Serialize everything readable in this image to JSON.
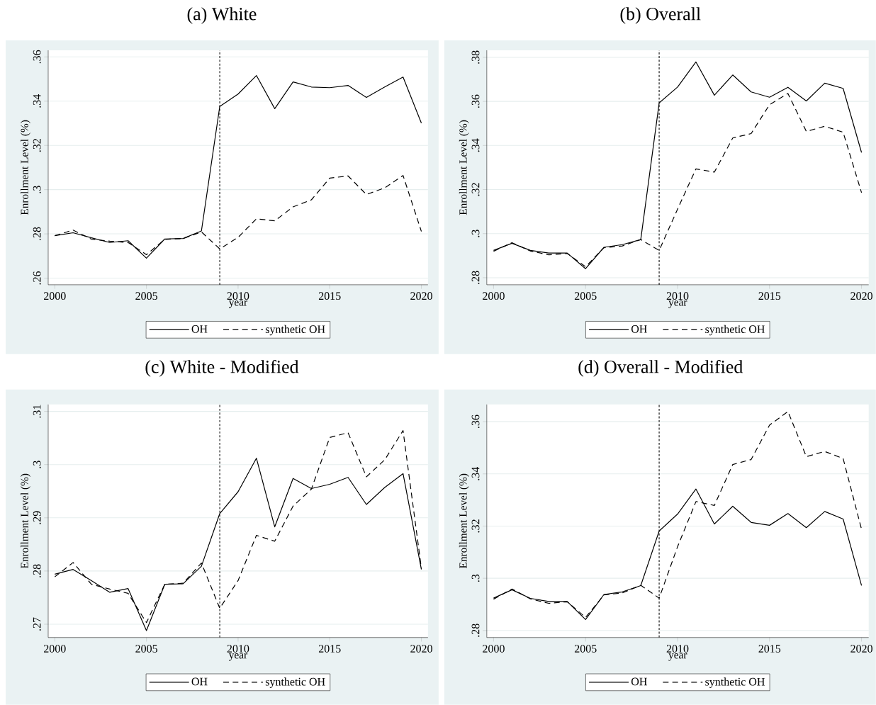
{
  "chart_data": [
    {
      "type": "line",
      "title": "(a) White",
      "xlabel": "year",
      "ylabel": "Enrollment Level (%)",
      "x": [
        2000,
        2001,
        2002,
        2003,
        2004,
        2005,
        2006,
        2007,
        2008,
        2009,
        2010,
        2011,
        2012,
        2013,
        2014,
        2015,
        2016,
        2017,
        2018,
        2019,
        2020
      ],
      "series": [
        {
          "name": "OH",
          "color": "#000000",
          "line_style": "solid",
          "values": [
            0.2792,
            0.2805,
            0.2782,
            0.2761,
            0.2769,
            0.269,
            0.2777,
            0.2779,
            0.2813,
            0.3376,
            0.3432,
            0.3516,
            0.3366,
            0.3487,
            0.3464,
            0.3461,
            0.3471,
            0.3417,
            0.3464,
            0.3509,
            0.3301
          ]
        },
        {
          "name": "synthetic OH",
          "color": "#000000",
          "line_style": "dashed",
          "values": [
            0.2792,
            0.2817,
            0.2776,
            0.2767,
            0.2761,
            0.2706,
            0.2775,
            0.2779,
            0.2809,
            0.2732,
            0.2784,
            0.2868,
            0.2859,
            0.2922,
            0.2954,
            0.3052,
            0.3062,
            0.2978,
            0.3008,
            0.3064,
            0.2811
          ]
        }
      ],
      "xlim": [
        1999.64,
        2020.36
      ],
      "xticks": [
        2000,
        2005,
        2010,
        2015,
        2020
      ],
      "ylim": [
        0.257,
        0.363
      ],
      "yticks": [
        {
          "value": 0.26,
          "label": ".26"
        },
        {
          "value": 0.28,
          "label": ".28"
        },
        {
          "value": 0.3,
          "label": ".3"
        },
        {
          "value": 0.32,
          "label": ".32"
        },
        {
          "value": 0.34,
          "label": ".34"
        },
        {
          "value": 0.36,
          "label": ".36"
        }
      ],
      "ref_lines": [
        {
          "axis": "x",
          "value": 2009,
          "color": "#000000",
          "line_style": "dotted"
        }
      ],
      "grid": "y",
      "legend": "bottom"
    },
    {
      "type": "line",
      "title": "(b) Overall",
      "xlabel": "year",
      "ylabel": "Enrollment Level (%)",
      "x": [
        2000,
        2001,
        2002,
        2003,
        2004,
        2005,
        2006,
        2007,
        2008,
        2009,
        2010,
        2011,
        2012,
        2013,
        2014,
        2015,
        2016,
        2017,
        2018,
        2019,
        2020
      ],
      "series": [
        {
          "name": "OH",
          "color": "#000000",
          "line_style": "solid",
          "values": [
            0.2924,
            0.2956,
            0.2924,
            0.2912,
            0.2912,
            0.2841,
            0.2938,
            0.295,
            0.2973,
            0.3593,
            0.3665,
            0.3779,
            0.3628,
            0.372,
            0.3643,
            0.3619,
            0.3664,
            0.3602,
            0.3683,
            0.3659,
            0.3368
          ]
        },
        {
          "name": "synthetic OH",
          "color": "#000000",
          "line_style": "dashed",
          "values": [
            0.292,
            0.2959,
            0.2921,
            0.2904,
            0.291,
            0.285,
            0.2936,
            0.2944,
            0.2973,
            0.2924,
            0.3111,
            0.3294,
            0.3279,
            0.3434,
            0.3454,
            0.3585,
            0.3636,
            0.3464,
            0.3487,
            0.346,
            0.3186
          ]
        }
      ],
      "xlim": [
        1999.63,
        2020.39
      ],
      "xticks": [
        2000,
        2005,
        2010,
        2015,
        2020
      ],
      "ylim": [
        0.2768,
        0.3832
      ],
      "yticks": [
        {
          "value": 0.28,
          "label": ".28"
        },
        {
          "value": 0.3,
          "label": ".3"
        },
        {
          "value": 0.32,
          "label": ".32"
        },
        {
          "value": 0.34,
          "label": ".34"
        },
        {
          "value": 0.36,
          "label": ".36"
        },
        {
          "value": 0.38,
          "label": ".38"
        }
      ],
      "ref_lines": [
        {
          "axis": "x",
          "value": 2009,
          "color": "#000000",
          "line_style": "dotted"
        }
      ],
      "grid": "y",
      "legend": "bottom"
    },
    {
      "type": "line",
      "title": "(c) White - Modified",
      "xlabel": "year",
      "ylabel": "Enrollment Level (%)",
      "x": [
        2000,
        2001,
        2002,
        2003,
        2004,
        2005,
        2006,
        2007,
        2008,
        2009,
        2010,
        2011,
        2012,
        2013,
        2014,
        2015,
        2016,
        2017,
        2018,
        2019,
        2020
      ],
      "series": [
        {
          "name": "OH",
          "color": "#000000",
          "line_style": "solid",
          "values": [
            0.2794,
            0.2803,
            0.2782,
            0.276,
            0.2767,
            0.2688,
            0.2775,
            0.2776,
            0.2809,
            0.2908,
            0.2949,
            0.3012,
            0.2883,
            0.2974,
            0.2955,
            0.2963,
            0.2976,
            0.2925,
            0.2957,
            0.2983,
            0.2803
          ]
        },
        {
          "name": "synthetic OH",
          "color": "#000000",
          "line_style": "dashed",
          "values": [
            0.2789,
            0.2816,
            0.2775,
            0.2766,
            0.2758,
            0.2703,
            0.2775,
            0.2777,
            0.2815,
            0.273,
            0.2782,
            0.2867,
            0.2856,
            0.2922,
            0.2954,
            0.3051,
            0.306,
            0.2977,
            0.3009,
            0.3064,
            0.2805
          ]
        }
      ],
      "xlim": [
        1999.64,
        2020.36
      ],
      "xticks": [
        2000,
        2005,
        2010,
        2015,
        2020
      ],
      "ylim": [
        0.2675,
        0.3113
      ],
      "yticks": [
        {
          "value": 0.27,
          "label": ".27"
        },
        {
          "value": 0.28,
          "label": ".28"
        },
        {
          "value": 0.29,
          "label": ".29"
        },
        {
          "value": 0.3,
          "label": ".3"
        },
        {
          "value": 0.31,
          "label": ".31"
        }
      ],
      "ref_lines": [
        {
          "axis": "x",
          "value": 2009,
          "color": "#000000",
          "line_style": "dotted"
        }
      ],
      "grid": "y",
      "legend": "bottom"
    },
    {
      "type": "line",
      "title": "(d) Overall - Modified",
      "xlabel": "year",
      "ylabel": "Enrollment Level (%)",
      "x": [
        2000,
        2001,
        2002,
        2003,
        2004,
        2005,
        2006,
        2007,
        2008,
        2009,
        2010,
        2011,
        2012,
        2013,
        2014,
        2015,
        2016,
        2017,
        2018,
        2019,
        2020
      ],
      "series": [
        {
          "name": "OH",
          "color": "#000000",
          "line_style": "solid",
          "values": [
            0.2924,
            0.2956,
            0.2923,
            0.2911,
            0.2911,
            0.2842,
            0.2938,
            0.2948,
            0.2972,
            0.3181,
            0.3246,
            0.3342,
            0.3208,
            0.3276,
            0.3214,
            0.3203,
            0.3248,
            0.3194,
            0.3256,
            0.3227,
            0.2972
          ]
        },
        {
          "name": "synthetic OH",
          "color": "#000000",
          "line_style": "dashed",
          "values": [
            0.292,
            0.2959,
            0.2921,
            0.2904,
            0.291,
            0.285,
            0.2936,
            0.2944,
            0.2973,
            0.2924,
            0.3121,
            0.3294,
            0.3279,
            0.3436,
            0.3455,
            0.3587,
            0.3639,
            0.3466,
            0.3486,
            0.3459,
            0.3188
          ]
        }
      ],
      "xlim": [
        1999.63,
        2020.39
      ],
      "xticks": [
        2000,
        2005,
        2010,
        2015,
        2020
      ],
      "ylim": [
        0.2773,
        0.3666
      ],
      "yticks": [
        {
          "value": 0.28,
          "label": ".28"
        },
        {
          "value": 0.3,
          "label": ".3"
        },
        {
          "value": 0.32,
          "label": ".32"
        },
        {
          "value": 0.34,
          "label": ".34"
        },
        {
          "value": 0.36,
          "label": ".36"
        }
      ],
      "ref_lines": [
        {
          "axis": "x",
          "value": 2009,
          "color": "#000000",
          "line_style": "dotted"
        }
      ],
      "grid": "y",
      "legend": "bottom"
    }
  ]
}
